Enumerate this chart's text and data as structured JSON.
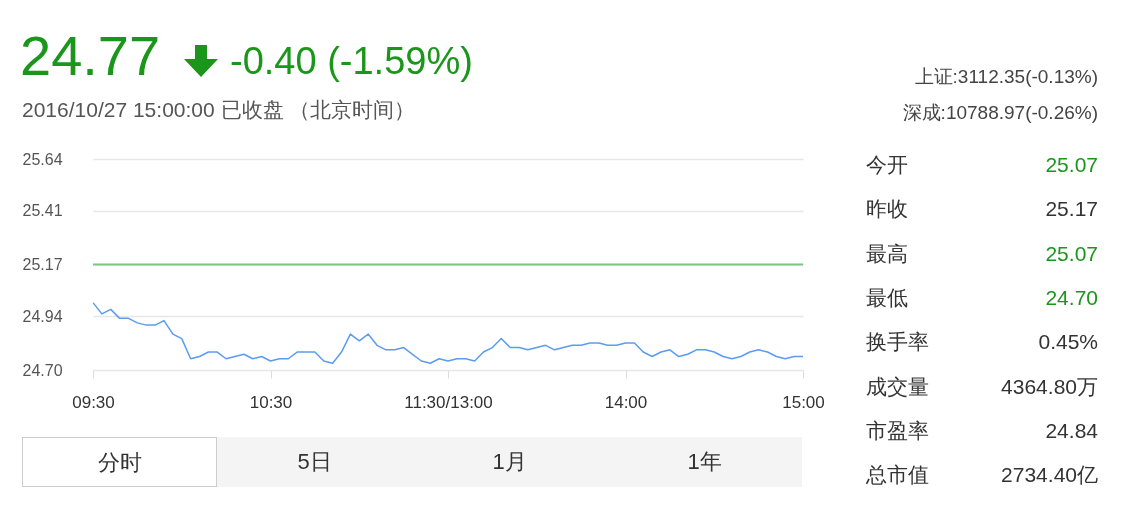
{
  "chart_data": {
    "type": "line",
    "title": "24.77",
    "subtitle": "2016/10/27 15:00:00 已收盘 （北京时间）",
    "annotations": [
      "-0.40 (-1.59%)",
      "上证:3112.35(-0.13%)",
      "深成:10788.97(-0.26%)",
      "今开",
      "25.07",
      "昨收",
      "25.17",
      "最高",
      "25.07",
      "最低",
      "24.70",
      "换手率",
      "0.45%",
      "成交量",
      "4364.80万",
      "市盈率",
      "24.84",
      "总市值",
      "2734.40亿",
      "分时",
      "5日",
      "1月",
      "1年"
    ],
    "categories": [
      "09:30",
      null,
      null,
      null,
      null,
      null,
      null,
      null,
      null,
      null,
      null,
      null,
      null,
      null,
      null,
      null,
      null,
      null,
      null,
      null,
      "10:30",
      null,
      null,
      null,
      null,
      null,
      null,
      null,
      null,
      null,
      null,
      null,
      null,
      null,
      null,
      null,
      null,
      null,
      null,
      null,
      "11:30/13:00",
      null,
      null,
      null,
      null,
      null,
      null,
      null,
      null,
      null,
      null,
      null,
      null,
      null,
      null,
      null,
      null,
      null,
      null,
      null,
      "14:00",
      null,
      null,
      null,
      null,
      null,
      null,
      null,
      null,
      null,
      null,
      null,
      null,
      null,
      null,
      null,
      null,
      null,
      null,
      null,
      "15:00"
    ],
    "series": [
      {
        "color": "#5b9cf0",
        "values": [
          25.0,
          24.95,
          24.97,
          24.93,
          24.93,
          24.91,
          24.9,
          24.9,
          24.92,
          24.86,
          24.84,
          24.75,
          24.76,
          24.78,
          24.78,
          24.75,
          24.76,
          24.77,
          24.75,
          24.76,
          24.74,
          24.75,
          24.75,
          24.78,
          24.78,
          24.78,
          24.74,
          24.73,
          24.78,
          24.86,
          24.83,
          24.86,
          24.81,
          24.79,
          24.79,
          24.8,
          24.77,
          24.74,
          24.73,
          24.75,
          24.74,
          24.75,
          24.75,
          24.74,
          24.78,
          24.8,
          24.84,
          24.8,
          24.8,
          24.79,
          24.8,
          24.81,
          24.79,
          24.8,
          24.81,
          24.81,
          24.82,
          24.82,
          24.81,
          24.81,
          24.82,
          24.82,
          24.78,
          24.76,
          24.78,
          24.79,
          24.76,
          24.77,
          24.79,
          24.79,
          24.78,
          24.76,
          24.75,
          24.76,
          24.78,
          24.79,
          24.78,
          24.76,
          24.75,
          24.76,
          24.76
        ]
      }
    ],
    "ylim": [
      24.7,
      25.64
    ],
    "yticks": [
      {
        "value": 24.7,
        "label": "24.70"
      },
      24.94,
      25.17,
      25.41,
      25.64
    ],
    "ref_lines": [
      {
        "axis": "y",
        "value": 25.17,
        "color": "#7dc67d"
      }
    ],
    "grid": "y"
  }
}
